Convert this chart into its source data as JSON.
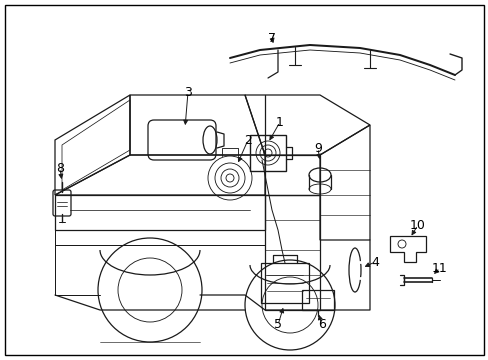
{
  "background_color": "#ffffff",
  "border_color": "#000000",
  "fig_width": 4.89,
  "fig_height": 3.6,
  "dpi": 100,
  "font_size": 9,
  "label_color": "#000000",
  "line_color": "#1a1a1a",
  "line_width": 0.9
}
